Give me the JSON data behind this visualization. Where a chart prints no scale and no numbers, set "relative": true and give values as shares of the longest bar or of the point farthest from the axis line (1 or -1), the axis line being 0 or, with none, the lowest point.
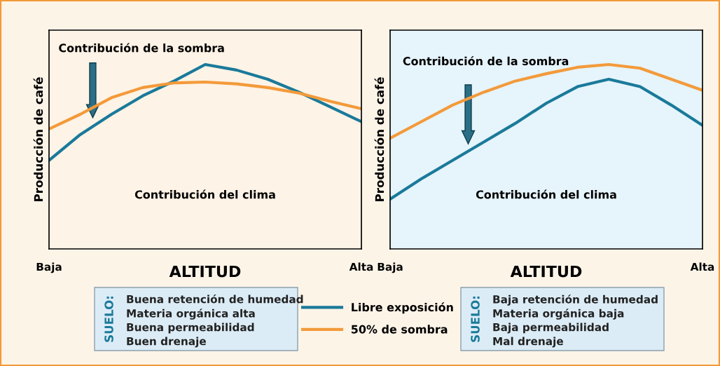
{
  "chart_data": [
    {
      "type": "line",
      "relative": true,
      "xlabel": "ALTITUD",
      "ylabel": "Producción de café",
      "categories": [
        "Baja",
        null,
        null,
        null,
        null,
        null,
        null,
        null,
        null,
        null,
        "Alta"
      ],
      "legend": "bottom",
      "grid": false,
      "series": [
        {
          "name": "Libre exposición",
          "color": "#1a7a9a",
          "values": [
            0.48,
            0.62,
            0.73,
            0.83,
            0.91,
            1.0,
            0.97,
            0.92,
            0.85,
            0.77,
            0.69
          ]
        },
        {
          "name": "50% de sombra",
          "color": "#f39a3a",
          "values": [
            0.65,
            0.73,
            0.82,
            0.875,
            0.9,
            0.905,
            0.895,
            0.875,
            0.845,
            0.8,
            0.76
          ]
        }
      ],
      "annotations": [
        "Contribución de la sombra",
        "Contribución del clima",
        "SUELO:",
        "Buena retención de humedad",
        "Materia orgánica alta",
        "Buena permeabilidad",
        "Buen drenaje"
      ]
    },
    {
      "type": "line",
      "relative": true,
      "xlabel": "ALTITUD",
      "ylabel": "Producción de café",
      "categories": [
        "Baja",
        null,
        null,
        null,
        null,
        null,
        null,
        null,
        null,
        null,
        "Alta"
      ],
      "grid": false,
      "series": [
        {
          "color": "#1a7a9a",
          "values": [
            0.27,
            0.38,
            0.48,
            0.58,
            0.68,
            0.79,
            0.88,
            0.92,
            0.88,
            0.78,
            0.67
          ]
        },
        {
          "color": "#f39a3a",
          "values": [
            0.6,
            0.69,
            0.78,
            0.85,
            0.91,
            0.95,
            0.985,
            1.0,
            0.98,
            0.92,
            0.86
          ]
        }
      ],
      "annotations": [
        "Contribución de la sombra",
        "Contribución del clima",
        "SUELO:",
        "Baja retención de humedad",
        "Materia orgánica baja",
        "Baja permeabilidad",
        "Mal drenaje"
      ]
    }
  ]
}
